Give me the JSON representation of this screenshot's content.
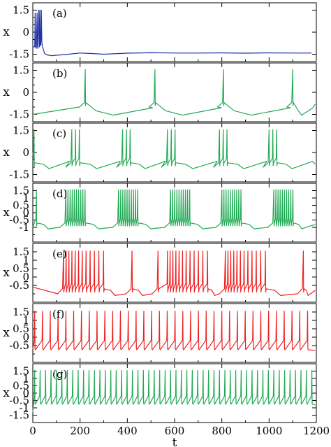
{
  "chart_data": [
    {
      "type": "line",
      "panel_tag": "(a)",
      "ylabel": "x",
      "xlabel": "",
      "ylim": [
        -2,
        2
      ],
      "xlim": [
        0,
        1200
      ],
      "yticks": [
        "1.5",
        "0",
        "-1.5"
      ],
      "ytick_values": [
        1.5,
        0,
        -1.5
      ],
      "color": "#2233aa",
      "pattern": "transient then quiescent",
      "series": [
        {
          "x": [
            0,
            8,
            10,
            12,
            15,
            18,
            20,
            22,
            25,
            28,
            30,
            32,
            34,
            36,
            38,
            40,
            45,
            50,
            60,
            80,
            100,
            150,
            200,
            250,
            300,
            400,
            500,
            600,
            700,
            800,
            900,
            1000,
            1100,
            1180
          ],
          "y": [
            -1.0,
            -1.0,
            1.3,
            -1.0,
            -1.1,
            1.3,
            -1.0,
            -1.1,
            1.5,
            -1.0,
            1.5,
            -0.9,
            -0.9,
            1.5,
            -0.6,
            -0.9,
            -1.2,
            -1.45,
            -1.55,
            -1.6,
            -1.57,
            -1.5,
            -1.42,
            -1.45,
            -1.5,
            -1.43,
            -1.4,
            -1.42,
            -1.42,
            -1.41,
            -1.43,
            -1.41,
            -1.42,
            -1.42
          ]
        }
      ]
    },
    {
      "type": "line",
      "panel_tag": "(b)",
      "ylabel": "x",
      "xlabel": "",
      "ylim": [
        -2,
        2
      ],
      "xlim": [
        0,
        1200
      ],
      "yticks": [
        "1.5",
        "0",
        "-1.5"
      ],
      "ytick_values": [
        1.5,
        0,
        -1.5
      ],
      "color": "#22aa55",
      "pattern": "single spikes",
      "burst_starts": [
        222,
        517,
        807,
        1100
      ],
      "spikes_per_burst": 1,
      "isi": 0,
      "start_level": -1.5
    },
    {
      "type": "line",
      "panel_tag": "(c)",
      "ylabel": "x",
      "xlabel": "",
      "ylim": [
        -2,
        2
      ],
      "xlim": [
        0,
        1200
      ],
      "yticks": [
        "1.5",
        "0",
        "-1.5"
      ],
      "ytick_values": [
        1.5,
        0,
        -1.5
      ],
      "color": "#22aa55",
      "pattern": "bursts of 3",
      "burst_starts": [
        165,
        380,
        570,
        790,
        1000
      ],
      "spikes_per_burst": 3,
      "isi": 16,
      "initial_spikes": [
        5
      ],
      "start_level": 0
    },
    {
      "type": "line",
      "panel_tag": "(d)",
      "ylabel": "x",
      "xlabel": "",
      "ylim": [
        -2,
        2
      ],
      "xlim": [
        0,
        1200
      ],
      "yticks": [
        "1.5",
        "1",
        "0.5",
        "0",
        "-0.5",
        "-1"
      ],
      "ytick_values": [
        1.5,
        1,
        0.5,
        0,
        -0.5,
        -1
      ],
      "color": "#22aa55",
      "pattern": "bursts of ~10",
      "burst_starts": [
        140,
        363,
        583,
        800,
        1020
      ],
      "spikes_per_burst": 10,
      "isi": 9,
      "initial_spikes": [
        15
      ],
      "start_level": -1
    },
    {
      "type": "line",
      "panel_tag": "(e)",
      "ylabel": "x",
      "xlabel": "",
      "ylim": [
        -1.5,
        2
      ],
      "xlim": [
        0,
        1200
      ],
      "yticks": [
        "1.5",
        "1",
        "0.5",
        "0",
        "-0.5"
      ],
      "ytick_values": [
        1.5,
        1,
        0.5,
        0,
        -0.5
      ],
      "color": "#ee2222",
      "pattern": "bursts with decaying spike rate",
      "burst_starts": [
        130,
        570,
        815
      ],
      "spikes_per_burst": 12,
      "isi": 11,
      "late_spikes": [
        420,
        530,
        1145
      ],
      "start_level": -0.6
    },
    {
      "type": "line",
      "panel_tag": "(f)",
      "ylabel": "x",
      "xlabel": "",
      "ylim": [
        -1.5,
        2
      ],
      "xlim": [
        0,
        1200
      ],
      "yticks": [
        "1.5",
        "1",
        "0.5",
        "0",
        "-0.5"
      ],
      "ytick_values": [
        1.5,
        1,
        0.5,
        0,
        -0.5
      ],
      "color": "#ee2222",
      "pattern": "regular spiking",
      "period": 33,
      "first_spike": 8,
      "start_level": -0.7
    },
    {
      "type": "line",
      "panel_tag": "(g)",
      "ylabel": "x",
      "xlabel": "t",
      "ylim": [
        -2,
        2
      ],
      "xlim": [
        0,
        1200
      ],
      "yticks": [
        "1.5",
        "1",
        "0.5",
        "0",
        "-0.5",
        "-1",
        "-1.5"
      ],
      "ytick_values": [
        1.5,
        1,
        0.5,
        0,
        -0.5,
        -1,
        -1.5
      ],
      "xticks": [
        "0",
        "200",
        "400",
        "600",
        "800",
        "1000",
        "1200"
      ],
      "xtick_values": [
        0,
        200,
        400,
        600,
        800,
        1000,
        1200
      ],
      "color": "#22aa55",
      "pattern": "fast regular spiking",
      "period": 23,
      "first_spike": 8,
      "start_level": -1.3
    }
  ]
}
